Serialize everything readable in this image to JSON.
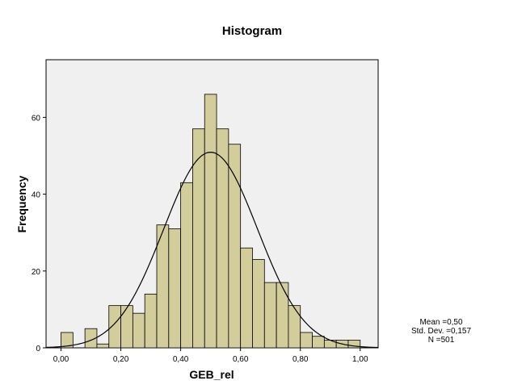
{
  "chart_data": {
    "type": "bar",
    "title": "Histogram",
    "xlabel": "GEB_rel",
    "ylabel": "Frequency",
    "xlim": [
      -0.05,
      1.06
    ],
    "ylim": [
      0,
      75
    ],
    "x_ticks": [
      0,
      0.2,
      0.4,
      0.6,
      0.8,
      1.0
    ],
    "x_tick_labels": [
      "0,00",
      "0,20",
      "0,40",
      "0,60",
      "0,80",
      "1,00"
    ],
    "y_ticks": [
      0,
      20,
      40,
      60
    ],
    "y_tick_labels": [
      "0",
      "20",
      "40",
      "60"
    ],
    "bin_width": 0.04,
    "bins": [
      {
        "x0": 0.0,
        "count": 4
      },
      {
        "x0": 0.04,
        "count": 0
      },
      {
        "x0": 0.08,
        "count": 5
      },
      {
        "x0": 0.12,
        "count": 1
      },
      {
        "x0": 0.16,
        "count": 11
      },
      {
        "x0": 0.2,
        "count": 11
      },
      {
        "x0": 0.24,
        "count": 9
      },
      {
        "x0": 0.28,
        "count": 14
      },
      {
        "x0": 0.32,
        "count": 32
      },
      {
        "x0": 0.36,
        "count": 31
      },
      {
        "x0": 0.4,
        "count": 43
      },
      {
        "x0": 0.44,
        "count": 57
      },
      {
        "x0": 0.48,
        "count": 66
      },
      {
        "x0": 0.52,
        "count": 57
      },
      {
        "x0": 0.56,
        "count": 53
      },
      {
        "x0": 0.6,
        "count": 26
      },
      {
        "x0": 0.64,
        "count": 23
      },
      {
        "x0": 0.68,
        "count": 17
      },
      {
        "x0": 0.72,
        "count": 17
      },
      {
        "x0": 0.76,
        "count": 11
      },
      {
        "x0": 0.8,
        "count": 4
      },
      {
        "x0": 0.84,
        "count": 3
      },
      {
        "x0": 0.88,
        "count": 2
      },
      {
        "x0": 0.92,
        "count": 2
      },
      {
        "x0": 0.96,
        "count": 2
      }
    ],
    "normal_curve": {
      "mean": 0.5,
      "std": 0.157,
      "n": 501
    },
    "stats_text": [
      "Mean =0,50",
      "Std. Dev. =0,157",
      "N =501"
    ],
    "grid": false,
    "colors": {
      "bar_fill": "#d3cd9b",
      "bar_stroke": "#000000",
      "plot_bg": "#f0f0f0",
      "curve": "#000000"
    }
  }
}
